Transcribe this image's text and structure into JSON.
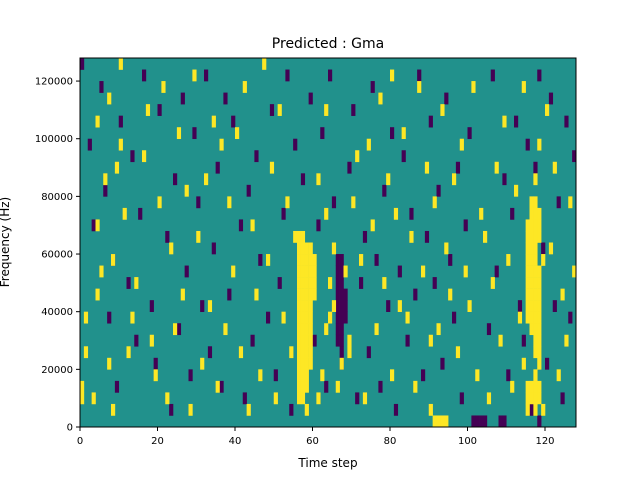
{
  "chart_data": {
    "type": "heatmap",
    "title": "Predicted : Gma",
    "xlabel": "Time step",
    "ylabel": "Frequency (Hz)",
    "xlim": [
      0,
      128
    ],
    "ylim": [
      0,
      128000
    ],
    "xticks": [
      0,
      20,
      40,
      60,
      80,
      100,
      120
    ],
    "xtick_labels": [
      "0",
      "20",
      "40",
      "60",
      "80",
      "100",
      "120"
    ],
    "yticks": [
      0,
      20000,
      40000,
      60000,
      80000,
      100000,
      120000
    ],
    "ytick_labels": [
      "0",
      "20000",
      "40000",
      "60000",
      "80000",
      "100000",
      "120000"
    ],
    "grid": false,
    "colormap": "viridis",
    "colors": {
      "low": "#440154",
      "mid": "#21918c",
      "high": "#fde725"
    },
    "value_levels": [
      -1,
      0,
      1
    ],
    "background_value": 0,
    "n_time_steps": 128,
    "n_frequency_bins": 32,
    "frequency_bin_hz": 4000,
    "cells_high": [
      [
        0,
        2
      ],
      [
        0,
        3
      ],
      [
        1,
        6
      ],
      [
        1,
        9
      ],
      [
        3,
        2
      ],
      [
        4,
        11
      ],
      [
        4,
        17
      ],
      [
        4,
        26
      ],
      [
        5,
        13
      ],
      [
        6,
        21
      ],
      [
        7,
        28
      ],
      [
        7,
        5
      ],
      [
        8,
        1
      ],
      [
        8,
        14
      ],
      [
        9,
        22
      ],
      [
        10,
        24
      ],
      [
        10,
        31
      ],
      [
        11,
        18
      ],
      [
        12,
        6
      ],
      [
        13,
        9
      ],
      [
        14,
        12
      ],
      [
        16,
        23
      ],
      [
        17,
        27
      ],
      [
        18,
        7
      ],
      [
        19,
        4
      ],
      [
        20,
        19
      ],
      [
        21,
        29
      ],
      [
        22,
        2
      ],
      [
        23,
        15
      ],
      [
        24,
        8
      ],
      [
        25,
        25
      ],
      [
        26,
        11
      ],
      [
        27,
        20
      ],
      [
        28,
        1
      ],
      [
        29,
        30
      ],
      [
        30,
        16
      ],
      [
        31,
        5
      ],
      [
        32,
        21
      ],
      [
        33,
        10
      ],
      [
        34,
        26
      ],
      [
        35,
        3
      ],
      [
        36,
        24
      ],
      [
        37,
        8
      ],
      [
        38,
        19
      ],
      [
        39,
        13
      ],
      [
        40,
        25
      ],
      [
        41,
        6
      ],
      [
        42,
        29
      ],
      [
        43,
        1
      ],
      [
        44,
        17
      ],
      [
        45,
        11
      ],
      [
        46,
        4
      ],
      [
        47,
        31
      ],
      [
        48,
        14
      ],
      [
        49,
        22
      ],
      [
        50,
        2
      ],
      [
        51,
        27
      ],
      [
        52,
        9
      ],
      [
        53,
        19
      ],
      [
        54,
        6
      ],
      [
        55,
        16
      ],
      [
        56,
        2
      ],
      [
        56,
        3
      ],
      [
        56,
        4
      ],
      [
        56,
        5
      ],
      [
        56,
        6
      ],
      [
        56,
        7
      ],
      [
        56,
        8
      ],
      [
        56,
        9
      ],
      [
        56,
        10
      ],
      [
        56,
        11
      ],
      [
        56,
        12
      ],
      [
        56,
        13
      ],
      [
        56,
        14
      ],
      [
        56,
        15
      ],
      [
        56,
        16
      ],
      [
        57,
        2
      ],
      [
        57,
        3
      ],
      [
        57,
        4
      ],
      [
        57,
        5
      ],
      [
        57,
        6
      ],
      [
        57,
        7
      ],
      [
        57,
        8
      ],
      [
        57,
        9
      ],
      [
        57,
        10
      ],
      [
        57,
        11
      ],
      [
        57,
        12
      ],
      [
        57,
        13
      ],
      [
        57,
        14
      ],
      [
        57,
        15
      ],
      [
        57,
        16
      ],
      [
        58,
        1
      ],
      [
        58,
        3
      ],
      [
        58,
        4
      ],
      [
        58,
        5
      ],
      [
        58,
        6
      ],
      [
        58,
        7
      ],
      [
        58,
        8
      ],
      [
        58,
        9
      ],
      [
        58,
        10
      ],
      [
        58,
        11
      ],
      [
        58,
        12
      ],
      [
        58,
        13
      ],
      [
        58,
        14
      ],
      [
        58,
        15
      ],
      [
        59,
        5
      ],
      [
        59,
        6
      ],
      [
        59,
        7
      ],
      [
        59,
        8
      ],
      [
        59,
        9
      ],
      [
        59,
        10
      ],
      [
        59,
        11
      ],
      [
        59,
        12
      ],
      [
        59,
        13
      ],
      [
        59,
        14
      ],
      [
        59,
        15
      ],
      [
        60,
        11
      ],
      [
        60,
        12
      ],
      [
        60,
        13
      ],
      [
        60,
        14
      ],
      [
        61,
        2
      ],
      [
        61,
        21
      ],
      [
        62,
        4
      ],
      [
        63,
        8
      ],
      [
        63,
        18
      ],
      [
        63,
        27
      ],
      [
        64,
        9
      ],
      [
        64,
        12
      ],
      [
        65,
        10
      ],
      [
        65,
        15
      ],
      [
        66,
        3
      ],
      [
        67,
        5
      ],
      [
        68,
        13
      ],
      [
        69,
        6
      ],
      [
        69,
        7
      ],
      [
        70,
        19
      ],
      [
        71,
        23
      ],
      [
        72,
        14
      ],
      [
        73,
        2
      ],
      [
        74,
        24
      ],
      [
        75,
        17
      ],
      [
        76,
        8
      ],
      [
        77,
        28
      ],
      [
        78,
        12
      ],
      [
        79,
        21
      ],
      [
        80,
        4
      ],
      [
        80,
        30
      ],
      [
        81,
        18
      ],
      [
        82,
        10
      ],
      [
        83,
        25
      ],
      [
        84,
        9
      ],
      [
        85,
        16
      ],
      [
        86,
        3
      ],
      [
        87,
        29
      ],
      [
        88,
        13
      ],
      [
        89,
        22
      ],
      [
        90,
        1
      ],
      [
        90,
        7
      ],
      [
        91,
        0
      ],
      [
        91,
        19
      ],
      [
        92,
        0
      ],
      [
        92,
        8
      ],
      [
        93,
        0
      ],
      [
        93,
        27
      ],
      [
        94,
        0
      ],
      [
        94,
        15
      ],
      [
        95,
        11
      ],
      [
        96,
        21
      ],
      [
        97,
        6
      ],
      [
        98,
        24
      ],
      [
        99,
        13
      ],
      [
        100,
        10
      ],
      [
        101,
        29
      ],
      [
        102,
        4
      ],
      [
        103,
        18
      ],
      [
        104,
        16
      ],
      [
        105,
        2
      ],
      [
        106,
        12
      ],
      [
        107,
        22
      ],
      [
        108,
        7
      ],
      [
        109,
        26
      ],
      [
        110,
        14
      ],
      [
        111,
        3
      ],
      [
        112,
        20
      ],
      [
        113,
        9
      ],
      [
        114,
        5
      ],
      [
        114,
        29
      ],
      [
        115,
        1
      ],
      [
        115,
        2
      ],
      [
        115,
        3
      ],
      [
        115,
        9
      ],
      [
        115,
        10
      ],
      [
        115,
        11
      ],
      [
        115,
        12
      ],
      [
        115,
        13
      ],
      [
        115,
        14
      ],
      [
        115,
        15
      ],
      [
        115,
        16
      ],
      [
        115,
        17
      ],
      [
        116,
        2
      ],
      [
        116,
        3
      ],
      [
        116,
        8
      ],
      [
        116,
        9
      ],
      [
        116,
        10
      ],
      [
        116,
        11
      ],
      [
        116,
        12
      ],
      [
        116,
        13
      ],
      [
        116,
        14
      ],
      [
        116,
        15
      ],
      [
        116,
        16
      ],
      [
        116,
        17
      ],
      [
        116,
        18
      ],
      [
        116,
        19
      ],
      [
        117,
        1
      ],
      [
        117,
        2
      ],
      [
        117,
        3
      ],
      [
        117,
        4
      ],
      [
        117,
        6
      ],
      [
        117,
        7
      ],
      [
        117,
        8
      ],
      [
        117,
        9
      ],
      [
        117,
        10
      ],
      [
        117,
        11
      ],
      [
        117,
        12
      ],
      [
        117,
        13
      ],
      [
        117,
        14
      ],
      [
        117,
        15
      ],
      [
        117,
        16
      ],
      [
        117,
        17
      ],
      [
        117,
        18
      ],
      [
        117,
        19
      ],
      [
        117,
        21
      ],
      [
        118,
        2
      ],
      [
        118,
        3
      ],
      [
        118,
        5
      ],
      [
        118,
        6
      ],
      [
        118,
        7
      ],
      [
        118,
        8
      ],
      [
        118,
        9
      ],
      [
        118,
        10
      ],
      [
        118,
        11
      ],
      [
        118,
        12
      ],
      [
        118,
        13
      ],
      [
        118,
        16
      ],
      [
        118,
        17
      ],
      [
        118,
        18
      ],
      [
        118,
        24
      ],
      [
        119,
        1
      ],
      [
        119,
        14
      ],
      [
        120,
        27
      ],
      [
        121,
        15
      ],
      [
        122,
        22
      ],
      [
        123,
        4
      ],
      [
        124,
        11
      ],
      [
        125,
        7
      ],
      [
        126,
        19
      ],
      [
        127,
        13
      ]
    ],
    "cells_low": [
      [
        0,
        31
      ],
      [
        2,
        24
      ],
      [
        3,
        17
      ],
      [
        5,
        29
      ],
      [
        6,
        20
      ],
      [
        7,
        9
      ],
      [
        8,
        14
      ],
      [
        9,
        3
      ],
      [
        10,
        26
      ],
      [
        12,
        12
      ],
      [
        13,
        23
      ],
      [
        14,
        7
      ],
      [
        15,
        18
      ],
      [
        16,
        30
      ],
      [
        18,
        10
      ],
      [
        19,
        5
      ],
      [
        20,
        27
      ],
      [
        22,
        16
      ],
      [
        23,
        1
      ],
      [
        24,
        21
      ],
      [
        25,
        8
      ],
      [
        26,
        28
      ],
      [
        27,
        13
      ],
      [
        28,
        4
      ],
      [
        29,
        25
      ],
      [
        30,
        19
      ],
      [
        31,
        10
      ],
      [
        32,
        30
      ],
      [
        33,
        6
      ],
      [
        34,
        15
      ],
      [
        35,
        22
      ],
      [
        36,
        3
      ],
      [
        37,
        28
      ],
      [
        38,
        11
      ],
      [
        39,
        26
      ],
      [
        41,
        17
      ],
      [
        42,
        2
      ],
      [
        43,
        20
      ],
      [
        44,
        7
      ],
      [
        45,
        23
      ],
      [
        46,
        14
      ],
      [
        48,
        9
      ],
      [
        49,
        27
      ],
      [
        50,
        4
      ],
      [
        51,
        12
      ],
      [
        52,
        18
      ],
      [
        53,
        30
      ],
      [
        54,
        1
      ],
      [
        55,
        24
      ],
      [
        57,
        21
      ],
      [
        59,
        28
      ],
      [
        60,
        7
      ],
      [
        61,
        17
      ],
      [
        62,
        25
      ],
      [
        63,
        3
      ],
      [
        64,
        30
      ],
      [
        65,
        19
      ],
      [
        66,
        7
      ],
      [
        66,
        8
      ],
      [
        66,
        9
      ],
      [
        66,
        10
      ],
      [
        66,
        11
      ],
      [
        66,
        12
      ],
      [
        66,
        13
      ],
      [
        66,
        14
      ],
      [
        67,
        5
      ],
      [
        67,
        6
      ],
      [
        67,
        7
      ],
      [
        67,
        8
      ],
      [
        67,
        9
      ],
      [
        67,
        10
      ],
      [
        67,
        11
      ],
      [
        67,
        12
      ],
      [
        67,
        13
      ],
      [
        67,
        14
      ],
      [
        68,
        9
      ],
      [
        68,
        10
      ],
      [
        68,
        11
      ],
      [
        69,
        22
      ],
      [
        70,
        27
      ],
      [
        71,
        2
      ],
      [
        72,
        12
      ],
      [
        73,
        16
      ],
      [
        74,
        6
      ],
      [
        75,
        29
      ],
      [
        76,
        14
      ],
      [
        77,
        3
      ],
      [
        78,
        20
      ],
      [
        79,
        10
      ],
      [
        80,
        25
      ],
      [
        81,
        1
      ],
      [
        82,
        13
      ],
      [
        83,
        23
      ],
      [
        84,
        7
      ],
      [
        85,
        18
      ],
      [
        86,
        11
      ],
      [
        87,
        30
      ],
      [
        88,
        4
      ],
      [
        89,
        16
      ],
      [
        90,
        26
      ],
      [
        91,
        12
      ],
      [
        92,
        20
      ],
      [
        93,
        5
      ],
      [
        94,
        28
      ],
      [
        95,
        14
      ],
      [
        96,
        9
      ],
      [
        97,
        22
      ],
      [
        98,
        2
      ],
      [
        99,
        17
      ],
      [
        100,
        25
      ],
      [
        101,
        0
      ],
      [
        102,
        0
      ],
      [
        103,
        0
      ],
      [
        104,
        0
      ],
      [
        105,
        8
      ],
      [
        106,
        30
      ],
      [
        107,
        13
      ],
      [
        108,
        0
      ],
      [
        109,
        0
      ],
      [
        109,
        21
      ],
      [
        110,
        4
      ],
      [
        111,
        18
      ],
      [
        112,
        26
      ],
      [
        113,
        10
      ],
      [
        114,
        7
      ],
      [
        115,
        24
      ],
      [
        116,
        1
      ],
      [
        117,
        22
      ],
      [
        118,
        0
      ],
      [
        118,
        30
      ],
      [
        119,
        15
      ],
      [
        120,
        5
      ],
      [
        121,
        28
      ],
      [
        122,
        10
      ],
      [
        123,
        19
      ],
      [
        124,
        2
      ],
      [
        125,
        26
      ],
      [
        126,
        9
      ],
      [
        127,
        23
      ]
    ]
  }
}
